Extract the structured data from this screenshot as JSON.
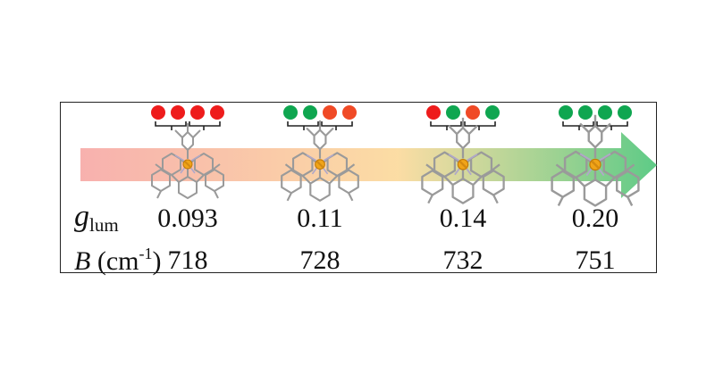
{
  "labels": {
    "glum_symbol": "g",
    "glum_subscript": "lum",
    "b_symbol": "B",
    "b_unit_prefix": " (cm",
    "b_unit_exp": "-1",
    "b_unit_suffix": ")"
  },
  "columns": [
    {
      "glum": "0.093",
      "B": "718",
      "dots": [
        "red",
        "red",
        "red",
        "red"
      ]
    },
    {
      "glum": "0.11",
      "B": "728",
      "dots": [
        "green",
        "green",
        "orange",
        "orange"
      ]
    },
    {
      "glum": "0.14",
      "B": "732",
      "dots": [
        "red",
        "green",
        "orange",
        "green"
      ]
    },
    {
      "glum": "0.20",
      "B": "751",
      "dots": [
        "green",
        "green",
        "green",
        "green"
      ]
    }
  ],
  "colors": {
    "red": "#ee1c1c",
    "orange": "#f04a26",
    "green": "#0fa650",
    "arrow_start": "#f6a3a0",
    "arrow_mid": "#fbd99a",
    "arrow_end": "#55c880"
  }
}
